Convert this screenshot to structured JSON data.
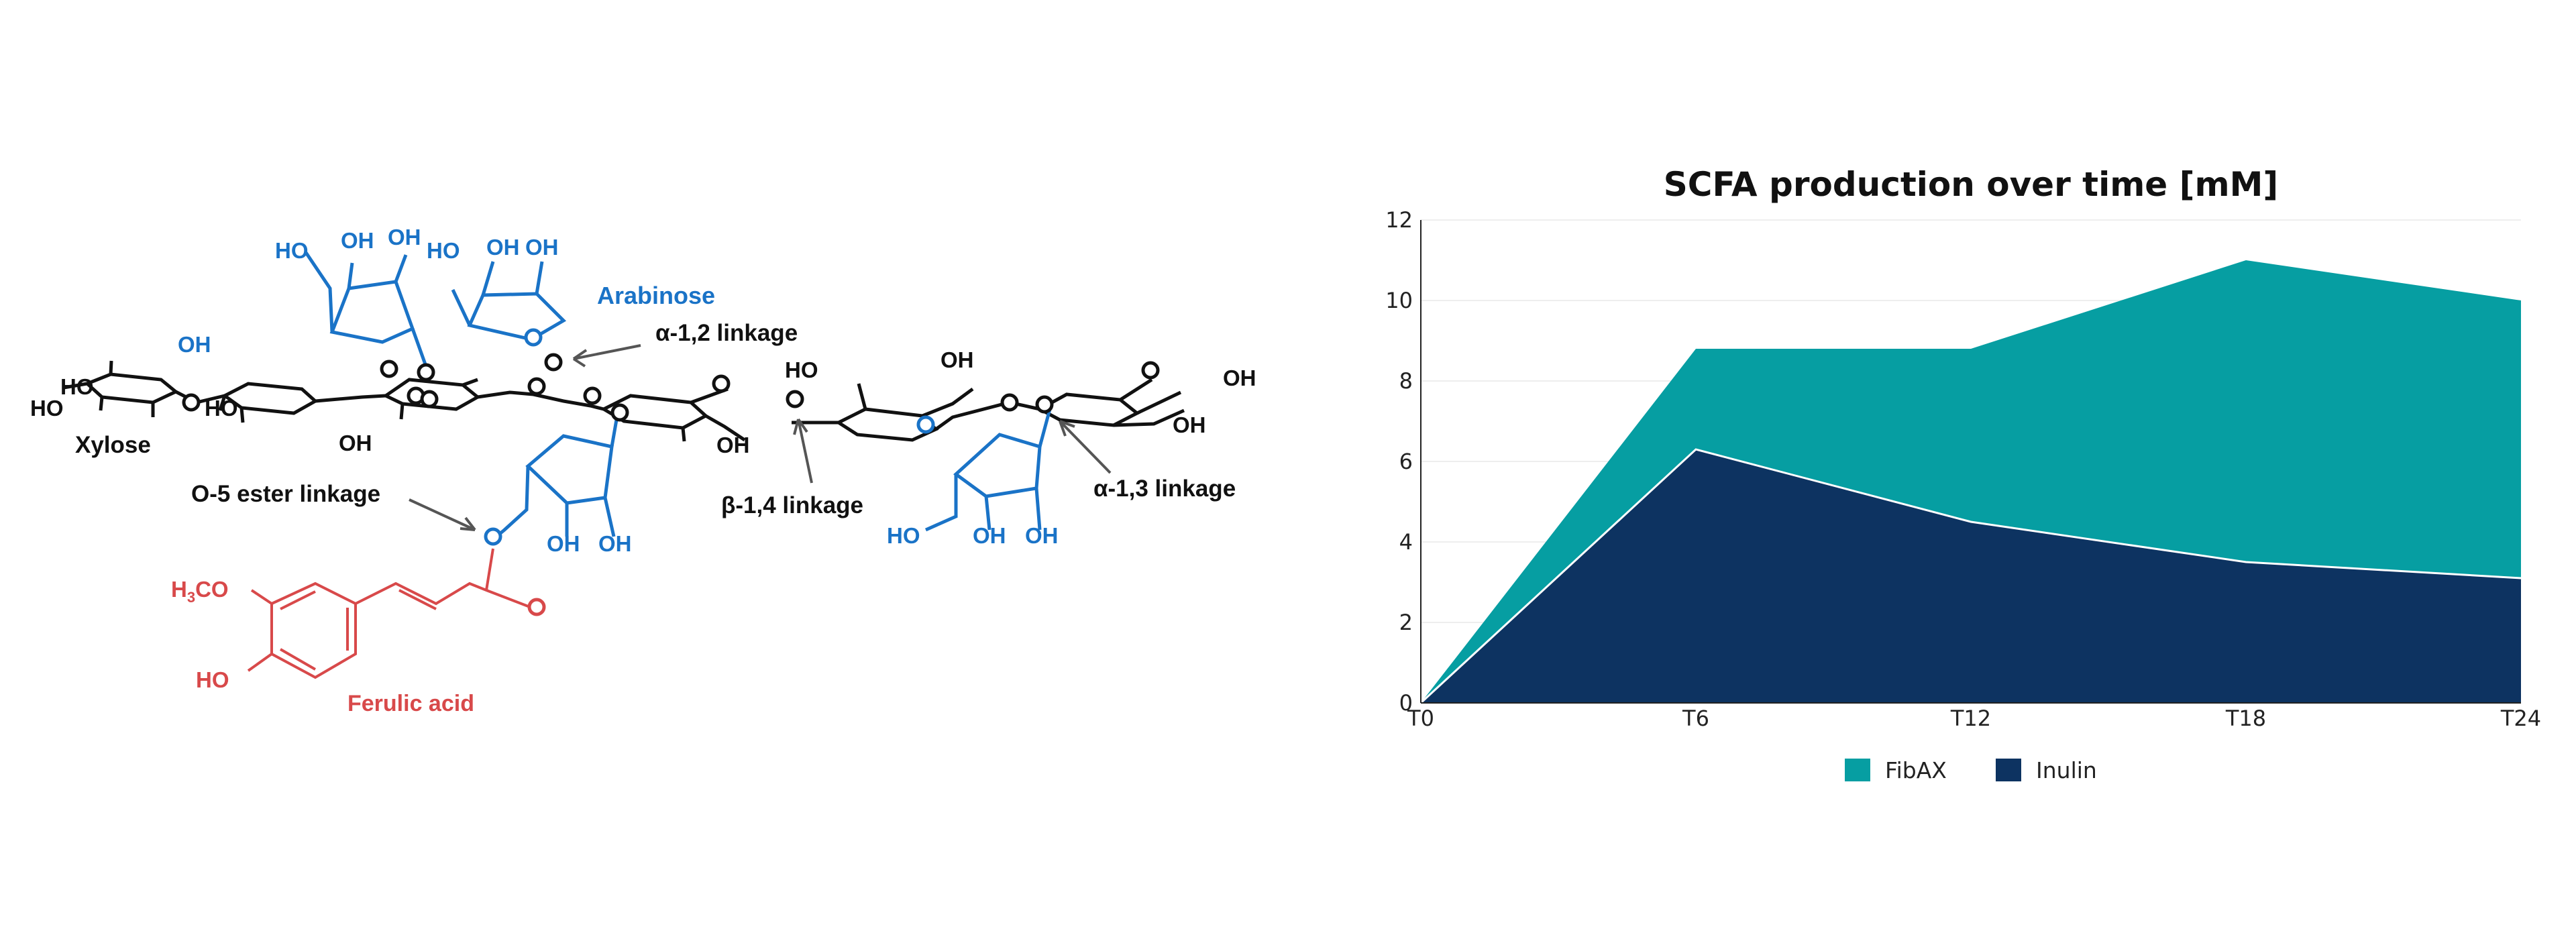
{
  "diagram": {
    "labels": {
      "arabinose": "Arabinose",
      "xylose": "Xylose",
      "ferulic_acid": "Ferulic acid",
      "a12": "α-1,2 linkage",
      "b14": "β-1,4 linkage",
      "a13": "α-1,3 linkage",
      "o5": "O-5 ester linkage"
    },
    "atoms": {
      "O": "O",
      "OH": "OH",
      "HO": "HO",
      "H3CO_main": "H",
      "H3CO_sub": "3",
      "H3CO_tail": "CO"
    },
    "colors": {
      "backbone": "#111111",
      "arabinose": "#1a73c7",
      "ferulic": "#d8494a",
      "arrow": "#555555"
    }
  },
  "chart_data": {
    "type": "area",
    "stacked": true,
    "title": "SCFA production over time [mM]",
    "categories": [
      "T0",
      "T6",
      "T12",
      "T18",
      "T24"
    ],
    "series": [
      {
        "name": "FibAX",
        "values": [
          0,
          2.5,
          4.3,
          7.5,
          6.9
        ],
        "color": "#069ea2"
      },
      {
        "name": "Inulin",
        "values": [
          0,
          6.3,
          4.5,
          3.5,
          3.1
        ],
        "color": "#0d3361"
      }
    ],
    "ylim": [
      0,
      12
    ],
    "yticks": [
      0,
      2,
      4,
      6,
      8,
      10,
      12
    ],
    "grid": true,
    "legend": "bottom"
  }
}
